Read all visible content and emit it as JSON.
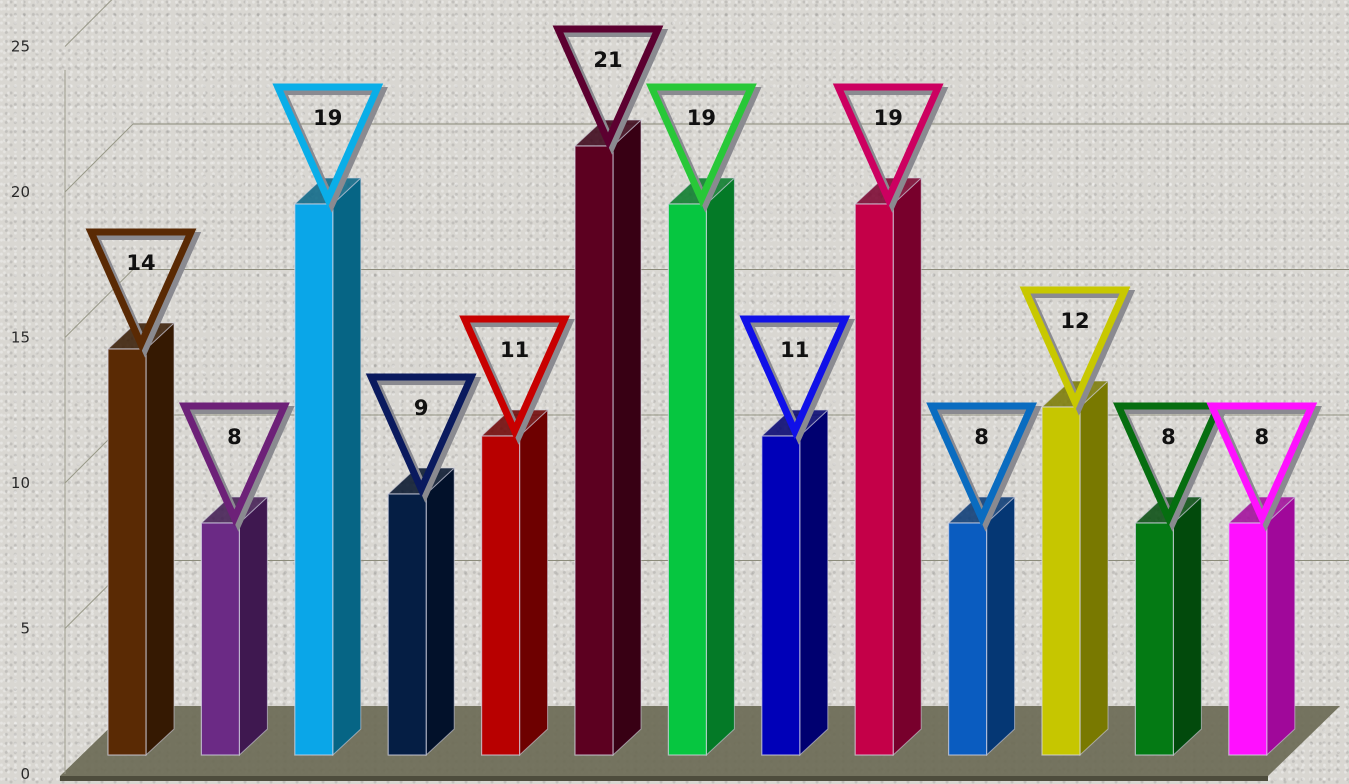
{
  "chart_data": {
    "type": "bar",
    "title": "",
    "xlabel": "",
    "ylabel": "",
    "ylim": [
      0,
      25
    ],
    "yticks": [
      0,
      5,
      10,
      15,
      20,
      25
    ],
    "ytick_labels": [
      "0",
      "5",
      "10",
      "15",
      "20",
      "25"
    ],
    "grid": true,
    "legend": "none",
    "values": [
      14,
      8,
      19,
      9,
      11,
      21,
      19,
      11,
      19,
      8,
      12,
      8,
      8
    ],
    "data_labels": [
      "14",
      "8",
      "19",
      "9",
      "11",
      "21",
      "19",
      "11",
      "19",
      "8",
      "12",
      "8",
      "8"
    ],
    "colors": [
      {
        "front": "#5a2a04",
        "side": "#351902",
        "marker": "#5a2a04"
      },
      {
        "front": "#6b2a85",
        "side": "#3f1850",
        "marker": "#6d2178"
      },
      {
        "front": "#0aa6e8",
        "side": "#066585",
        "marker": "#0aaee8"
      },
      {
        "front": "#051e44",
        "side": "#02112a",
        "marker": "#0a1a5e"
      },
      {
        "front": "#b80000",
        "side": "#6e0000",
        "marker": "#c80000"
      },
      {
        "front": "#5c0020",
        "side": "#380014",
        "marker": "#5c0030"
      },
      {
        "front": "#06c640",
        "side": "#047a27",
        "marker": "#28c838"
      },
      {
        "front": "#0000b8",
        "side": "#000070",
        "marker": "#1010e8"
      },
      {
        "front": "#c40048",
        "side": "#78002c",
        "marker": "#cc0060"
      },
      {
        "front": "#0a5cc0",
        "side": "#053774",
        "marker": "#0a6cc0"
      },
      {
        "front": "#c6c600",
        "side": "#797900",
        "marker": "#c8c800"
      },
      {
        "front": "#047a14",
        "side": "#024a0c",
        "marker": "#066e10"
      },
      {
        "front": "#ff10ff",
        "side": "#a0089a",
        "marker": "#ff10ff"
      }
    ]
  }
}
